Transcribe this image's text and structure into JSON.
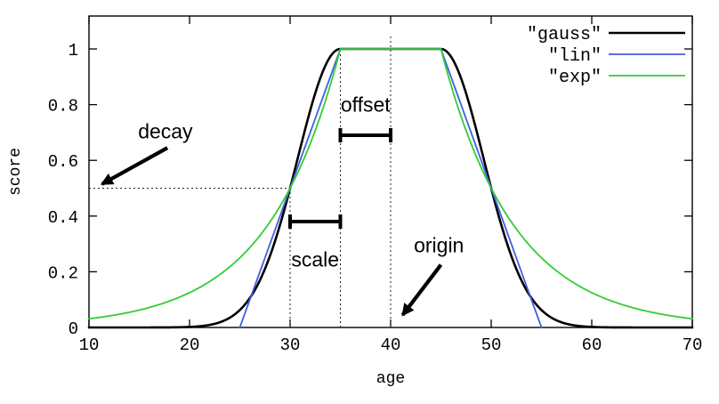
{
  "axes": {
    "x_label": "age",
    "y_label": "score",
    "x_range": [
      10,
      70
    ],
    "y_range": [
      0,
      1.12
    ],
    "x_ticks": {
      "values": [
        10,
        20,
        30,
        40,
        50,
        60,
        70
      ],
      "labels": [
        "10",
        "20",
        "30",
        "40",
        "50",
        "60",
        "70"
      ]
    },
    "y_ticks": {
      "values": [
        0,
        0.2,
        0.4,
        0.6,
        0.8,
        1
      ],
      "labels": [
        "0",
        "0.2",
        "0.4",
        "0.6",
        "0.8",
        "1"
      ]
    }
  },
  "legend": {
    "position": "top-right",
    "entries": [
      {
        "label": "\"gauss\"",
        "color": "#000000"
      },
      {
        "label": "\"lin\"",
        "color": "#3f5fe0"
      },
      {
        "label": "\"exp\"",
        "color": "#33cc33"
      }
    ]
  },
  "chart_data": {
    "type": "line",
    "title": "",
    "xlabel": "age",
    "ylabel": "score",
    "xlim": [
      10,
      70
    ],
    "ylim": [
      0,
      1.12
    ],
    "grid": false,
    "legend_position": "top-right inside",
    "series": [
      {
        "name": "\"gauss\"",
        "fn": "gauss",
        "color": "#000000",
        "width": 2.6,
        "domain": [
          10,
          70
        ],
        "params": {
          "origin": 40,
          "offset": 5,
          "scale": 5,
          "decay": 0.5
        },
        "x_samples": [
          10,
          15,
          20,
          25,
          30,
          35,
          40,
          45,
          50,
          55,
          60,
          65,
          70
        ],
        "y_samples": [
          0,
          0,
          0.002,
          0.063,
          0.5,
          1,
          1,
          1,
          0.5,
          0.063,
          0.002,
          0,
          0
        ]
      },
      {
        "name": "\"lin\"",
        "fn": "lin",
        "color": "#3f5fe0",
        "width": 1.8,
        "domain": [
          25,
          55
        ],
        "params": {
          "origin": 40,
          "offset": 5,
          "scale": 5,
          "decay": 0.5
        },
        "x_samples": [
          10,
          15,
          20,
          25,
          30,
          35,
          40,
          45,
          50,
          55,
          60,
          65,
          70
        ],
        "y_samples": [
          0,
          0,
          0,
          0,
          0.5,
          1,
          1,
          1,
          0.5,
          0,
          0,
          0,
          0
        ]
      },
      {
        "name": "\"exp\"",
        "fn": "exp",
        "color": "#33cc33",
        "width": 1.8,
        "domain": [
          10,
          70
        ],
        "params": {
          "origin": 40,
          "offset": 5,
          "scale": 5,
          "decay": 0.5
        },
        "x_samples": [
          10,
          15,
          20,
          25,
          30,
          35,
          40,
          45,
          50,
          55,
          60,
          65,
          70
        ],
        "y_samples": [
          0.031,
          0.063,
          0.125,
          0.25,
          0.5,
          1,
          1,
          1,
          0.5,
          0.25,
          0.125,
          0.063,
          0.031
        ]
      }
    ],
    "guides": [
      {
        "type": "h",
        "y": 0.5,
        "x1": 10,
        "x2": 30
      },
      {
        "type": "v",
        "x": 30,
        "y1": 0,
        "y2": 0.5
      },
      {
        "type": "v",
        "x": 35,
        "y1": 0,
        "y2": 1.0
      },
      {
        "type": "v",
        "x": 40,
        "y1": 0,
        "y2": 1.05
      }
    ],
    "brackets": [
      {
        "label": "offset",
        "x1": 35,
        "x2": 40,
        "y": 0.69,
        "label_x": 37.5,
        "label_y": 0.8
      },
      {
        "label": "scale",
        "x1": 30,
        "x2": 35,
        "y": 0.38,
        "label_x": 32.5,
        "label_y": 0.245
      }
    ],
    "arrows": [
      {
        "label": "decay",
        "label_x": 17.6,
        "label_y": 0.705,
        "x1": 17.8,
        "y1": 0.645,
        "x2": 11.3,
        "y2": 0.515
      },
      {
        "label": "origin",
        "label_x": 44.8,
        "label_y": 0.295,
        "x1": 45.0,
        "y1": 0.225,
        "x2": 41.2,
        "y2": 0.045
      }
    ]
  }
}
